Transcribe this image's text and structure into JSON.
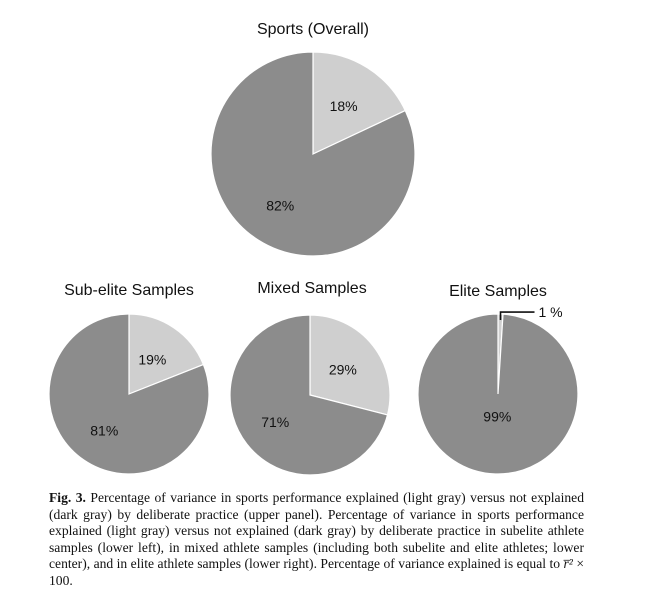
{
  "colors": {
    "explained": "#cfcfcf",
    "not_explained": "#8c8c8c",
    "outline": "#ffffff"
  },
  "chart_data": [
    {
      "type": "pie",
      "title": "Sports (Overall)",
      "slices": [
        {
          "name": "explained",
          "value": 18,
          "label": "18%"
        },
        {
          "name": "not explained",
          "value": 82,
          "label": "82%"
        }
      ]
    },
    {
      "type": "pie",
      "title": "Sub-elite Samples",
      "slices": [
        {
          "name": "explained",
          "value": 19,
          "label": "19%"
        },
        {
          "name": "not explained",
          "value": 81,
          "label": "81%"
        }
      ]
    },
    {
      "type": "pie",
      "title": "Mixed Samples",
      "slices": [
        {
          "name": "explained",
          "value": 29,
          "label": "29%"
        },
        {
          "name": "not explained",
          "value": 71,
          "label": "71%"
        }
      ]
    },
    {
      "type": "pie",
      "title": "Elite Samples",
      "slices": [
        {
          "name": "explained",
          "value": 1,
          "label": "1 %"
        },
        {
          "name": "not explained",
          "value": 99,
          "label": "99%"
        }
      ]
    }
  ],
  "caption": {
    "fig_label": "Fig. 3.",
    "text_before": "Percentage of variance in sports performance explained (light gray) versus not explained (dark gray) by deliberate practice (upper panel). Percentage of variance in sports performance explained (light gray) versus not explained (dark gray) by deliberate practice in subelite athlete samples (lower left), in mixed athlete samples (including both subelite and elite athletes; lower center), and in elite athlete samples (lower right). Percentage of variance explained is equal to ",
    "formula": "r̅²",
    "text_after": " × 100."
  }
}
